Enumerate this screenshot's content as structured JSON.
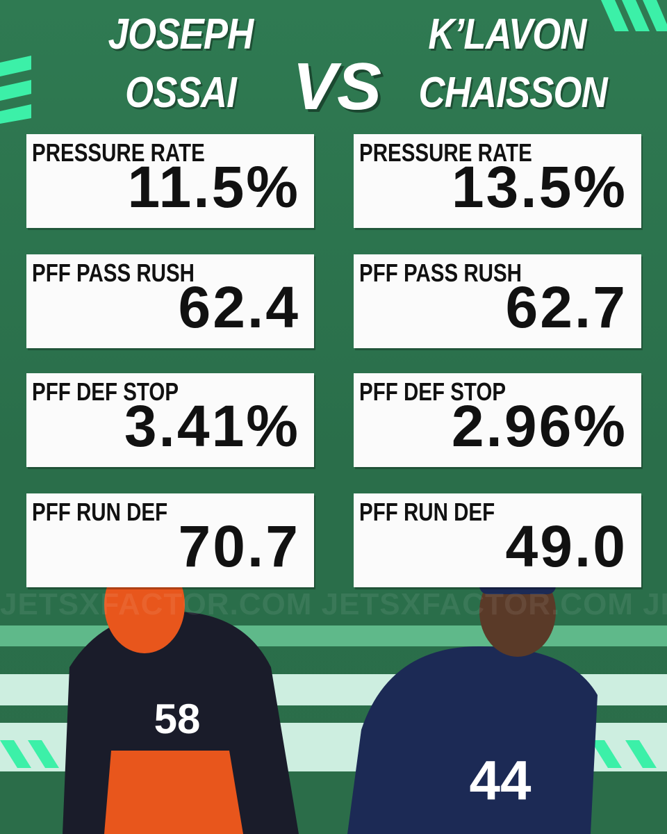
{
  "header": {
    "vs": "VS"
  },
  "players": [
    {
      "name_lines": [
        "JOSEPH",
        "OSSAI"
      ],
      "stats": [
        {
          "label": "PRESSURE RATE",
          "value": "11.5%"
        },
        {
          "label": "PFF PASS RUSH",
          "value": "62.4"
        },
        {
          "label": "PFF DEF STOP",
          "value": "3.41%"
        },
        {
          "label": "PFF RUN DEF",
          "value": "70.7"
        }
      ]
    },
    {
      "name_lines": [
        "K’LAVON",
        "CHAISSON"
      ],
      "stats": [
        {
          "label": "PRESSURE RATE",
          "value": "13.5%"
        },
        {
          "label": "PFF PASS RUSH",
          "value": "62.7"
        },
        {
          "label": "PFF DEF STOP",
          "value": "2.96%"
        },
        {
          "label": "PFF RUN DEF",
          "value": "49.0"
        }
      ]
    }
  ],
  "watermark": "JETSXFACTOR.COM"
}
